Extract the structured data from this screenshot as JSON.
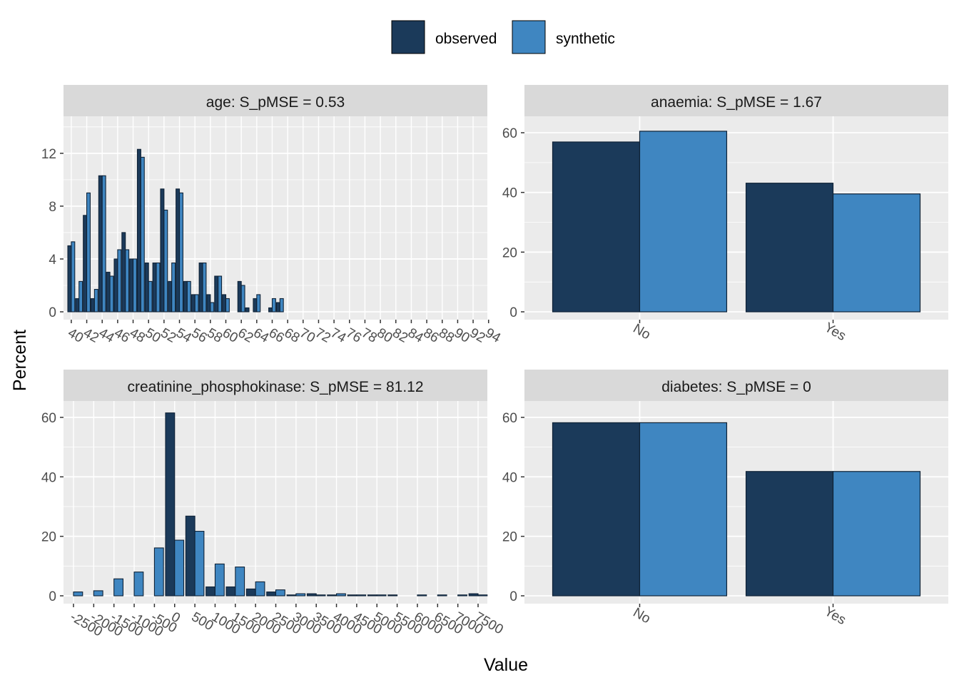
{
  "legend": {
    "items": [
      {
        "label": "observed",
        "color": "#1b3a5a"
      },
      {
        "label": "synthetic",
        "color": "#3f86c1"
      }
    ]
  },
  "axes": {
    "xlabel": "Value",
    "ylabel": "Percent"
  },
  "colors": {
    "observed": "#1b3a5a",
    "synthetic": "#3f86c1",
    "panel_bg": "#ebebeb",
    "strip_bg": "#d9d9d9",
    "grid": "#ffffff"
  },
  "chart_data": [
    {
      "type": "bar",
      "title": "age: S_pMSE = 0.53",
      "ylim": [
        0,
        14.8
      ],
      "yticks": [
        0,
        4,
        8,
        12
      ],
      "categories": [
        "40",
        "41",
        "42",
        "43",
        "44",
        "45",
        "46",
        "47",
        "48",
        "49",
        "50",
        "51",
        "52",
        "53",
        "54",
        "55",
        "56",
        "57",
        "58",
        "59",
        "60",
        "61",
        "62",
        "63",
        "64",
        "65",
        "66",
        "67",
        "68",
        "69",
        "70",
        "71",
        "72",
        "73",
        "74",
        "75",
        "76",
        "77",
        "78",
        "79",
        "80",
        "81",
        "82",
        "83",
        "84",
        "85",
        "86",
        "87",
        "88",
        "89",
        "90",
        "91",
        "92",
        "93",
        "94"
      ],
      "tick_labels": [
        "40",
        "42",
        "44",
        "46",
        "48",
        "50",
        "52",
        "54",
        "56",
        "58",
        "60",
        "62",
        "64",
        "66",
        "68",
        "70",
        "72",
        "74",
        "76",
        "78",
        "80",
        "82",
        "84",
        "86",
        "88",
        "90",
        "92",
        "94"
      ],
      "series": [
        {
          "name": "observed",
          "values": [
            5.0,
            1.0,
            7.3,
            1.0,
            10.3,
            3.0,
            4.0,
            6.0,
            4.0,
            12.3,
            3.7,
            3.7,
            9.3,
            2.3,
            9.3,
            2.3,
            1.3,
            3.7,
            1.3,
            2.7,
            1.3,
            0.0,
            2.3,
            0.3,
            1.0,
            0.0,
            0.3,
            0.7,
            0,
            0,
            0,
            0,
            0,
            0,
            0,
            0,
            0,
            0,
            0,
            0,
            0,
            0,
            0,
            0,
            0,
            0,
            0,
            0,
            0,
            0,
            0,
            0,
            0,
            0,
            0
          ]
        },
        {
          "name": "synthetic",
          "values": [
            5.3,
            2.3,
            9.0,
            1.7,
            10.3,
            2.7,
            4.7,
            4.7,
            4.0,
            11.7,
            2.3,
            3.7,
            7.7,
            3.7,
            9.0,
            2.3,
            1.3,
            3.7,
            0.7,
            2.7,
            1.0,
            0.0,
            2.0,
            0.0,
            1.3,
            0.0,
            1.0,
            1.0,
            0,
            0,
            0,
            0,
            0,
            0,
            0,
            0,
            0,
            0,
            0,
            0,
            0,
            0,
            0,
            0,
            0,
            0,
            0,
            0,
            0,
            0,
            0,
            0,
            0,
            0,
            0
          ]
        }
      ]
    },
    {
      "type": "bar",
      "title": "anaemia: S_pMSE = 1.67",
      "ylim": [
        0,
        65.5
      ],
      "yticks": [
        0,
        20,
        40,
        60
      ],
      "categories": [
        "No",
        "Yes"
      ],
      "series": [
        {
          "name": "observed",
          "values": [
            56.9,
            43.1
          ]
        },
        {
          "name": "synthetic",
          "values": [
            60.5,
            39.5
          ]
        }
      ]
    },
    {
      "type": "bar",
      "title": "creatinine_phosphokinase: S_pMSE = 81.12",
      "ylim": [
        0,
        65.5
      ],
      "yticks": [
        0,
        20,
        40,
        60
      ],
      "categories": [
        "-2500",
        "-2000",
        "-1500",
        "-1000",
        "-500",
        "0",
        "500",
        "1000",
        "1500",
        "2000",
        "2500",
        "3000",
        "3500",
        "4000",
        "4500",
        "5000",
        "5500",
        "6000",
        "6500",
        "7000",
        "7500"
      ],
      "tick_labels": [
        "-2500",
        "-2000",
        "-1500",
        "-1000",
        "-500",
        "0",
        "500",
        "1000",
        "1500",
        "2000",
        "2500",
        "3000",
        "3500",
        "4000",
        "4500",
        "5000",
        "5500",
        "6000",
        "6500",
        "7000",
        "7500"
      ],
      "series": [
        {
          "name": "observed",
          "values": [
            0.0,
            0.0,
            0.0,
            0.0,
            0.0,
            61.5,
            26.8,
            3.0,
            3.0,
            2.3,
            1.3,
            0.3,
            0.7,
            0.3,
            0.3,
            0.3,
            0.3,
            0.0,
            0.0,
            0.0,
            0.7
          ]
        },
        {
          "name": "synthetic",
          "values": [
            1.3,
            1.7,
            5.7,
            8.0,
            16.1,
            18.7,
            21.7,
            10.7,
            9.7,
            4.7,
            2.0,
            0.7,
            0.3,
            0.7,
            0.3,
            0.3,
            0.0,
            0.3,
            0.3,
            0.3,
            0.3
          ]
        }
      ]
    },
    {
      "type": "bar",
      "title": "diabetes: S_pMSE = 0",
      "ylim": [
        0,
        65.5
      ],
      "yticks": [
        0,
        20,
        40,
        60
      ],
      "categories": [
        "No",
        "Yes"
      ],
      "series": [
        {
          "name": "observed",
          "values": [
            58.2,
            41.8
          ]
        },
        {
          "name": "synthetic",
          "values": [
            58.2,
            41.8
          ]
        }
      ]
    }
  ]
}
